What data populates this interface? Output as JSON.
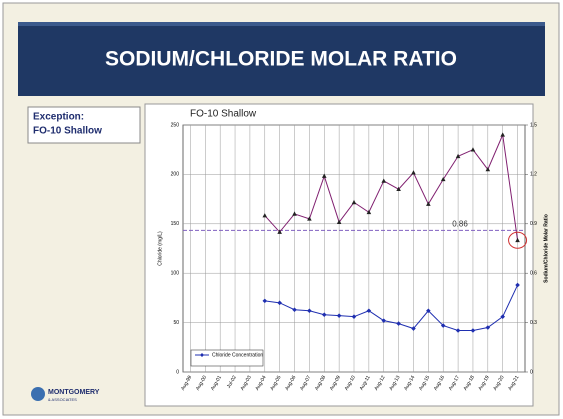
{
  "slide_title": "SODIUM/CHLORIDE MOLAR RATIO",
  "exception_box": {
    "heading": "Exception:",
    "well": "FO-10 Shallow"
  },
  "logo": {
    "name": "MONTGOMERY",
    "sub": "& ASSOCIATES"
  },
  "chart_data": {
    "type": "line",
    "title": "FO-10 Shallow",
    "y_label": "Chloride (mg/L)",
    "y2_label": "Sodium/Chloride Molar Ratio",
    "categories": [
      "Aug-99",
      "Aug-00",
      "Aug-01",
      "Jul-02",
      "Aug-03",
      "Aug-04",
      "Aug-05",
      "Aug-06",
      "Aug-07",
      "Aug-08",
      "Aug-09",
      "Aug-10",
      "Aug-11",
      "Aug-12",
      "Aug-13",
      "Aug-14",
      "Aug-15",
      "Aug-16",
      "Aug-17",
      "Aug-18",
      "Aug-19",
      "Aug-20",
      "Aug-21"
    ],
    "series": [
      {
        "name": "Chloride Concentration",
        "color": "#1f2fb0",
        "marker": "diamond",
        "values": [
          null,
          null,
          null,
          null,
          null,
          72,
          70,
          63,
          62,
          58,
          57,
          56,
          62,
          52,
          49,
          44,
          62,
          47,
          42,
          42,
          45,
          56,
          88
        ]
      },
      {
        "color": "#802070",
        "marker": "triangle",
        "axis": "y2",
        "values": [
          null,
          null,
          null,
          null,
          null,
          0.95,
          0.85,
          0.96,
          0.93,
          1.19,
          0.91,
          1.03,
          0.97,
          1.16,
          1.11,
          1.21,
          1.02,
          1.17,
          1.31,
          1.35,
          1.23,
          1.44,
          0.8
        ]
      }
    ],
    "reference_line": {
      "value": 0.86,
      "axis": "y2",
      "color": "#8060c0"
    },
    "highlight_color": "#d03030",
    "ylim": [
      0,
      250
    ],
    "yticks": [
      0,
      50,
      100,
      150,
      200,
      250
    ],
    "y2lim": [
      0,
      1.5
    ],
    "y2ticks": [
      0,
      0.3,
      0.6,
      0.9,
      1.2,
      1.5
    ],
    "grid": true,
    "legend": "lower left"
  }
}
